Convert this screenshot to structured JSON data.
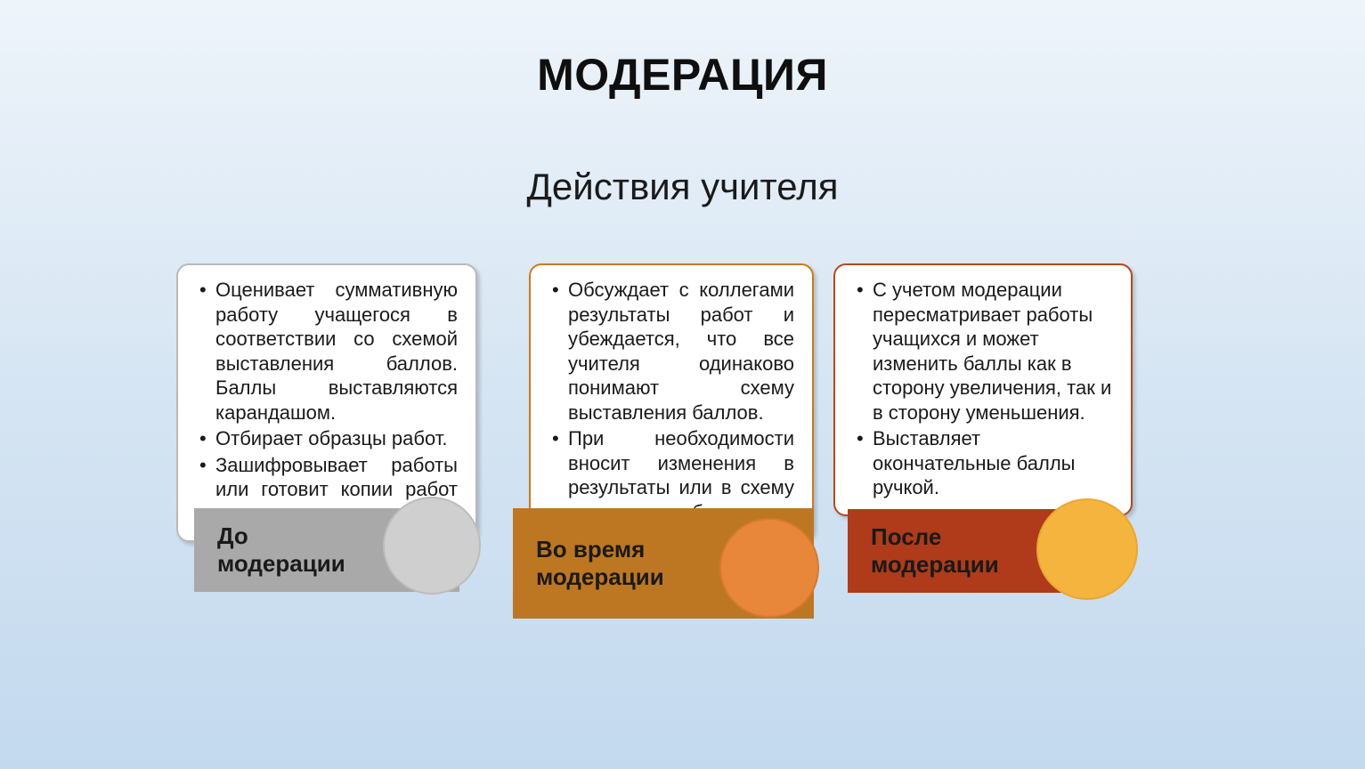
{
  "title": "МОДЕРАЦИЯ",
  "subtitle": "Действия учителя",
  "background_gradient": [
    "#eef4fa",
    "#d6e5f3",
    "#c3d9ee"
  ],
  "title_fontsize": 50,
  "subtitle_fontsize": 42,
  "body_fontsize": 22,
  "label_fontsize": 26,
  "columns": [
    {
      "id": "before",
      "label_line1": "До",
      "label_line2": "модерации",
      "card_border_color": "#b9b9b9",
      "bar_color": "#a9a9a9",
      "circle_fill": "#cfcfcf",
      "circle_border": "#bdbdbd",
      "bullets": [
        "Оценивает суммативную работу учащегося в соответствии со схемой выставления баллов. Баллы выставляются карандашом.",
        "Отбирает образцы работ.",
        "Зашифровывает работы или готовит копии работ учащихся."
      ],
      "justify": true
    },
    {
      "id": "during",
      "label_line1": "Во время",
      "label_line2": "модерации",
      "card_border_color": "#c97a1f",
      "bar_color": "#bd7723",
      "circle_fill": "#e8873a",
      "circle_border": "#d67a2e",
      "bullets": [
        "Обсуждает с коллегами результаты работ и убеждается, что все учителя одинаково понимают схему выставления баллов.",
        "При необходимости вносит изменения в результаты или в схему выставления баллов."
      ],
      "justify": true
    },
    {
      "id": "after",
      "label_line1": "После",
      "label_line2": "модерации",
      "card_border_color": "#b24a1f",
      "bar_color": "#af3b1a",
      "circle_fill": "#f4b43e",
      "circle_border": "#e9a733",
      "bullets": [
        "С учетом модерации пересматривает работы учащихся и может изменить баллы как в сторону увеличения, так и в сторону уменьшения.",
        "Выставляет окончательные баллы ручкой."
      ],
      "justify": false
    }
  ]
}
